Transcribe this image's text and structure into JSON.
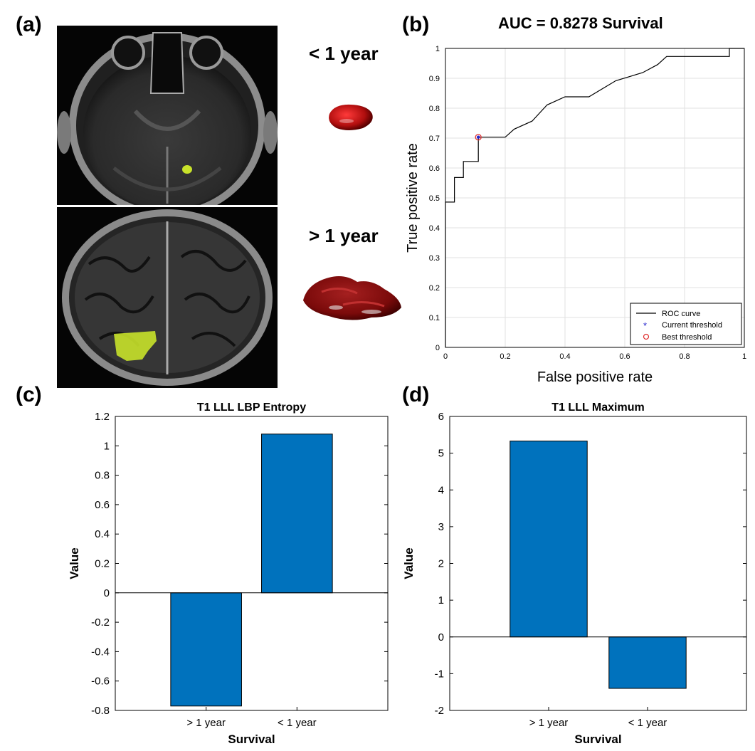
{
  "panels": {
    "a": "(a)",
    "b": "(b)",
    "c": "(c)",
    "d": "(d)"
  },
  "panel_a": {
    "top_label": "< 1 year",
    "bottom_label": "> 1 year",
    "lesion_color": "#c8e22a",
    "tumor_color": "#b01010"
  },
  "chart_data": [
    {
      "id": "roc",
      "type": "line",
      "title": "AUC = 0.8278 Survival",
      "xlabel": "False positive rate",
      "ylabel": "True positive rate",
      "xlim": [
        0,
        1
      ],
      "ylim": [
        0,
        1
      ],
      "xticks": [
        "0",
        "0.2",
        "0.4",
        "0.6",
        "0.8",
        "1"
      ],
      "yticks": [
        "0",
        "0.1",
        "0.2",
        "0.3",
        "0.4",
        "0.5",
        "0.6",
        "0.7",
        "0.8",
        "0.9",
        "1"
      ],
      "grid": true,
      "series": [
        {
          "name": "ROC curve",
          "x": [
            0,
            0,
            0.03,
            0.03,
            0.06,
            0.06,
            0.11,
            0.11,
            0.2,
            0.23,
            0.23,
            0.29,
            0.29,
            0.34,
            0.34,
            0.4,
            0.4,
            0.48,
            0.48,
            0.57,
            0.57,
            0.66,
            0.66,
            0.71,
            0.71,
            0.74,
            0.74,
            0.95,
            0.95,
            1
          ],
          "y": [
            0,
            0.486,
            0.486,
            0.568,
            0.568,
            0.622,
            0.622,
            0.703,
            0.703,
            0.73,
            0.73,
            0.757,
            0.757,
            0.811,
            0.811,
            0.838,
            0.838,
            0.838,
            0.838,
            0.892,
            0.892,
            0.919,
            0.919,
            0.946,
            0.946,
            0.973,
            0.973,
            0.973,
            1,
            1
          ]
        }
      ],
      "threshold_point": {
        "x": 0.11,
        "y": 0.703
      },
      "legend": {
        "position": "bottom-right",
        "entries": [
          "ROC curve",
          "Current threshold",
          "Best threshold"
        ]
      },
      "colors": {
        "curve": "#000000",
        "current": "#2222cc",
        "best": "#e03030"
      }
    },
    {
      "id": "entropy",
      "type": "bar",
      "title": "T1 LLL LBP Entropy",
      "xlabel": "Survival",
      "ylabel": "Value",
      "categories": [
        "> 1 year",
        "< 1 year"
      ],
      "values": [
        -0.77,
        1.08
      ],
      "ylim": [
        -0.8,
        1.2
      ],
      "yticks": [
        "-0.8",
        "-0.6",
        "-0.4",
        "-0.2",
        "0",
        "0.2",
        "0.4",
        "0.6",
        "0.8",
        "1",
        "1.2"
      ],
      "color": "#0072bd"
    },
    {
      "id": "maximum",
      "type": "bar",
      "title": "T1 LLL Maximum",
      "xlabel": "Survival",
      "ylabel": "Value",
      "categories": [
        "> 1 year",
        "< 1 year"
      ],
      "values": [
        5.33,
        -1.4
      ],
      "ylim": [
        -2,
        6
      ],
      "yticks": [
        "-2",
        "-1",
        "0",
        "1",
        "2",
        "3",
        "4",
        "5",
        "6"
      ],
      "color": "#0072bd"
    }
  ]
}
